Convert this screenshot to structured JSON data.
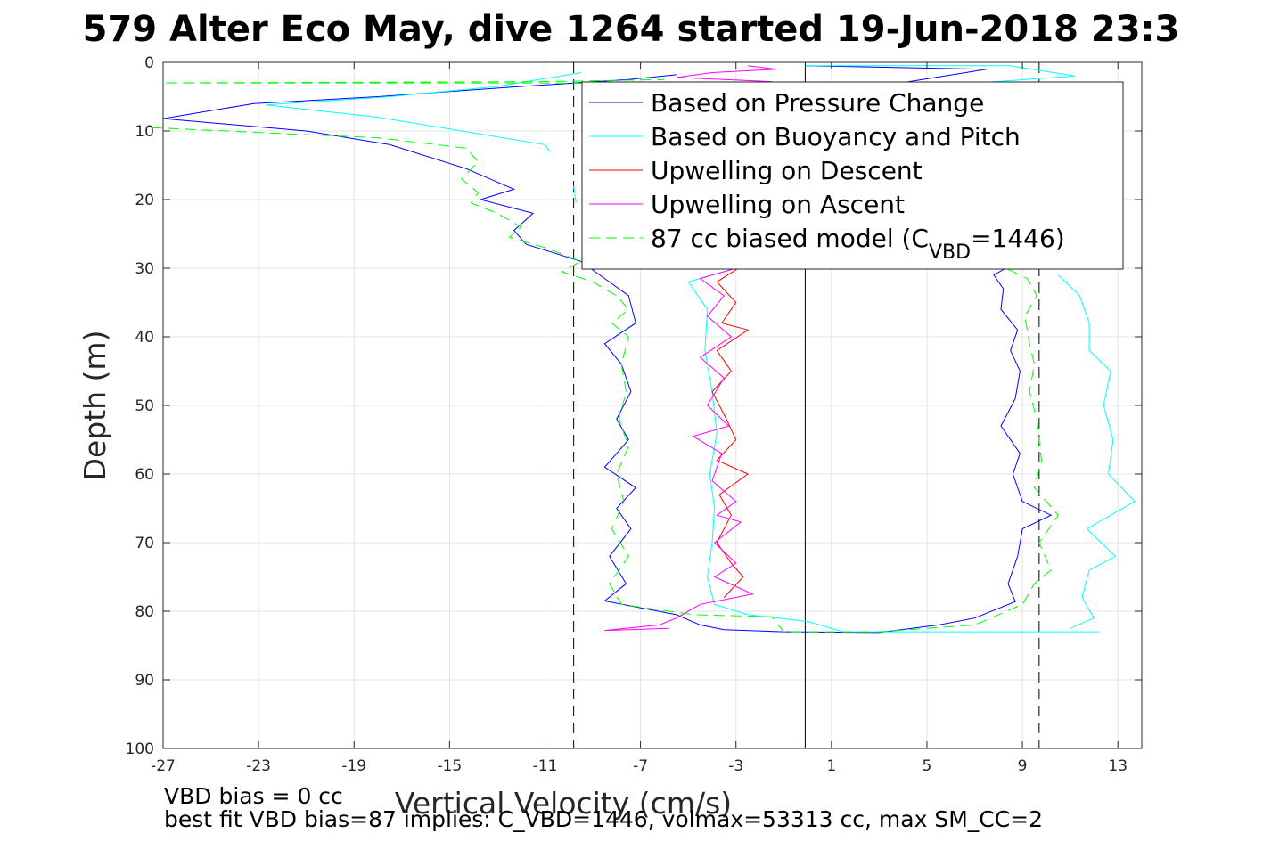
{
  "chart_data": {
    "type": "line",
    "title": "579 Alter Eco May, dive 1264 started 19-Jun-2018 23:3",
    "xlabel": "Vertical Velocity (cm/s)",
    "ylabel": "Depth (m)",
    "xlim": [
      -27,
      14
    ],
    "ylim": [
      0,
      100
    ],
    "y_reversed": true,
    "grid": true,
    "x_ticks": [
      -27,
      -23,
      -19,
      -15,
      -11,
      -7,
      -3,
      1,
      5,
      9,
      13
    ],
    "y_ticks": [
      0,
      10,
      20,
      30,
      40,
      50,
      60,
      70,
      80,
      90,
      100
    ],
    "legend_position": "top-right",
    "reference_lines": [
      {
        "x": -9.8,
        "style": "dashed",
        "color": "#000000"
      },
      {
        "x": -0.1,
        "style": "solid",
        "color": "#000000"
      },
      {
        "x": 9.7,
        "style": "dashed",
        "color": "#000000"
      }
    ],
    "series": [
      {
        "name": "Based on Pressure Change",
        "color": "#0000ff",
        "style": "solid",
        "segments": [
          [
            [
              -5.5,
              1.8
            ],
            [
              -7.5,
              2.5
            ],
            [
              -12,
              3.5
            ],
            [
              -18,
              5
            ],
            [
              -23.2,
              6
            ],
            [
              -27,
              8.2
            ],
            [
              -21,
              10
            ],
            [
              -17.5,
              12
            ],
            [
              -14.3,
              15.5
            ],
            [
              -12.3,
              18.5
            ],
            [
              -13.7,
              20
            ],
            [
              -11.5,
              22
            ],
            [
              -12.3,
              24.5
            ],
            [
              -11.8,
              26.5
            ],
            [
              -9.5,
              29
            ],
            [
              -8.5,
              31.5
            ],
            [
              -7.5,
              34
            ],
            [
              -7.2,
              38
            ],
            [
              -8.5,
              41
            ],
            [
              -7.8,
              44
            ],
            [
              -7.4,
              48
            ],
            [
              -8.0,
              52
            ],
            [
              -7.5,
              55
            ],
            [
              -8.5,
              59
            ],
            [
              -7.2,
              62
            ],
            [
              -8.0,
              65
            ],
            [
              -7.4,
              68
            ],
            [
              -8.3,
              72
            ],
            [
              -7.6,
              76
            ],
            [
              -8.5,
              78.5
            ],
            [
              -5.5,
              80.5
            ],
            [
              -4.5,
              82
            ],
            [
              -3.5,
              82.7
            ],
            [
              -1,
              83
            ],
            [
              3,
              83.1
            ],
            [
              5.5,
              82
            ],
            [
              7,
              81
            ],
            [
              8.7,
              78.6
            ],
            [
              8.4,
              76
            ],
            [
              8.8,
              72
            ],
            [
              9.0,
              68
            ],
            [
              10.2,
              66
            ],
            [
              9.0,
              64
            ],
            [
              8.6,
              60
            ],
            [
              8.9,
              57
            ],
            [
              8.1,
              53
            ],
            [
              8.7,
              49
            ],
            [
              8.9,
              45
            ],
            [
              8.5,
              42
            ],
            [
              8.8,
              39
            ],
            [
              8.1,
              36
            ],
            [
              8.2,
              33
            ],
            [
              7.8,
              31
            ],
            [
              8.3,
              30
            ]
          ],
          [
            [
              -0.1,
              0.5
            ],
            [
              7.5,
              1
            ],
            [
              3,
              3.5
            ],
            [
              1,
              4.5
            ],
            [
              -8.5,
              4.8
            ]
          ]
        ]
      },
      {
        "name": "Based on Buoyancy and Pitch",
        "color": "#00ffff",
        "style": "solid",
        "segments": [
          [
            [
              -9.5,
              1.5
            ],
            [
              -13,
              3.5
            ],
            [
              -17.5,
              5
            ],
            [
              -22.7,
              6.2
            ],
            [
              -18,
              8
            ],
            [
              -14.5,
              10
            ],
            [
              -11,
              12
            ],
            [
              -10.8,
              13
            ]
          ],
          [
            [
              -9.8,
              18
            ],
            [
              -9.7,
              20.5
            ]
          ],
          [
            [
              -3,
              30
            ],
            [
              -5,
              32
            ],
            [
              -4.2,
              36
            ],
            [
              -4.3,
              42
            ],
            [
              -4.0,
              48
            ],
            [
              -3.8,
              54
            ],
            [
              -4.1,
              60
            ],
            [
              -3.9,
              65
            ],
            [
              -4.0,
              70
            ],
            [
              -4.2,
              75
            ],
            [
              -3.9,
              79
            ],
            [
              -2.5,
              80.5
            ],
            [
              0,
              81.5
            ],
            [
              1.5,
              83
            ],
            [
              6,
              83
            ],
            [
              12.2,
              83
            ]
          ],
          [
            [
              11,
              82.5
            ],
            [
              12,
              81
            ],
            [
              11.5,
              78
            ],
            [
              11.8,
              74
            ],
            [
              12.9,
              72
            ],
            [
              11.7,
              68
            ],
            [
              13.7,
              64
            ],
            [
              12.6,
              60
            ],
            [
              12.8,
              55
            ],
            [
              12.4,
              50
            ],
            [
              12.7,
              45
            ],
            [
              11.8,
              42
            ],
            [
              11.8,
              38
            ],
            [
              11.4,
              34
            ],
            [
              10.5,
              31
            ]
          ],
          [
            [
              -0.1,
              0.5
            ],
            [
              8.5,
              0.5
            ],
            [
              11.2,
              2
            ],
            [
              5,
              3.5
            ],
            [
              -9,
              4.5
            ]
          ]
        ]
      },
      {
        "name": "Upwelling on Descent",
        "color": "#ff0000",
        "style": "solid",
        "segments": [
          [
            [
              -2.9,
              30
            ],
            [
              -3.8,
              32
            ],
            [
              -3.0,
              35
            ],
            [
              -3.6,
              38
            ],
            [
              -2.5,
              39
            ],
            [
              -3.8,
              42
            ],
            [
              -3.2,
              45
            ],
            [
              -4.0,
              48
            ],
            [
              -3.4,
              52
            ],
            [
              -3.0,
              55
            ],
            [
              -3.8,
              58
            ],
            [
              -2.5,
              60
            ],
            [
              -3.7,
              63
            ],
            [
              -3.2,
              66
            ],
            [
              -3.8,
              70
            ],
            [
              -3.2,
              73
            ],
            [
              -2.7,
              75
            ],
            [
              -3.5,
              78
            ]
          ]
        ]
      },
      {
        "name": "Upwelling on Ascent",
        "color": "#ff00ff",
        "style": "solid",
        "segments": [
          [
            [
              -3,
              30
            ],
            [
              -4.5,
              31.5
            ],
            [
              -3.5,
              34
            ],
            [
              -4.2,
              37
            ],
            [
              -3.2,
              40
            ],
            [
              -4.5,
              43
            ],
            [
              -3.5,
              46
            ],
            [
              -4.2,
              50
            ],
            [
              -3.3,
              53
            ],
            [
              -4.8,
              54.5
            ],
            [
              -3.6,
              57
            ],
            [
              -4.0,
              61
            ],
            [
              -3.0,
              64
            ],
            [
              -3.8,
              66
            ],
            [
              -2.8,
              67
            ],
            [
              -3.9,
              70
            ],
            [
              -3.0,
              73
            ],
            [
              -3.9,
              75
            ],
            [
              -2.3,
              77.5
            ],
            [
              -4.5,
              79
            ],
            [
              -5.5,
              81
            ],
            [
              -6.2,
              82
            ],
            [
              -8.5,
              82.8
            ],
            [
              -5.8,
              82.5
            ]
          ],
          [
            [
              -2.5,
              0.5
            ],
            [
              -1.3,
              1
            ],
            [
              -4,
              1.5
            ],
            [
              -5.5,
              2.2
            ],
            [
              -1.5,
              2.8
            ]
          ]
        ]
      },
      {
        "name": "87 cc biased model (C_VBD=1446)",
        "color": "#00ff00",
        "style": "dashed",
        "segments": [
          [
            [
              -3,
              3.2
            ],
            [
              -12,
              3
            ],
            [
              -27,
              3
            ],
            [
              -11,
              2.8
            ],
            [
              -6,
              2.5
            ]
          ],
          [
            [
              -27.5,
              9.5
            ],
            [
              -18,
              11
            ],
            [
              -14.3,
              12.5
            ],
            [
              -13.8,
              14.5
            ],
            [
              -14.5,
              17
            ],
            [
              -13.8,
              19
            ],
            [
              -14.1,
              20.5
            ],
            [
              -13,
              22
            ],
            [
              -12,
              24
            ],
            [
              -12.5,
              25.5
            ],
            [
              -11,
              27
            ],
            [
              -9.5,
              29
            ],
            [
              -10.3,
              30.5
            ],
            [
              -9.0,
              32
            ],
            [
              -8.0,
              34
            ],
            [
              -7.5,
              36
            ],
            [
              -8.2,
              38
            ],
            [
              -7.5,
              40
            ],
            [
              -7.8,
              44
            ],
            [
              -7.6,
              48
            ],
            [
              -7.9,
              52
            ],
            [
              -7.5,
              56
            ],
            [
              -8.0,
              60
            ],
            [
              -7.7,
              64
            ],
            [
              -8.2,
              68
            ],
            [
              -7.5,
              72
            ],
            [
              -8.3,
              76
            ],
            [
              -7.8,
              79
            ],
            [
              -4.8,
              80.5
            ],
            [
              -1.5,
              80.8
            ],
            [
              -1,
              83
            ],
            [
              3,
              83
            ],
            [
              7,
              82
            ],
            [
              9.0,
              79
            ],
            [
              9.5,
              76
            ],
            [
              10.2,
              74
            ],
            [
              9.7,
              70
            ],
            [
              10.5,
              66
            ],
            [
              9.5,
              62
            ],
            [
              9.8,
              58
            ],
            [
              9.6,
              52
            ],
            [
              9.3,
              48
            ],
            [
              9.5,
              44
            ],
            [
              9.3,
              41
            ],
            [
              9.1,
              37
            ],
            [
              9.6,
              34
            ],
            [
              9.2,
              31.5
            ],
            [
              8.3,
              30
            ]
          ]
        ]
      }
    ],
    "legend": [
      {
        "label": "Based on Pressure Change",
        "color": "#0000ff",
        "style": "solid"
      },
      {
        "label": "Based on Buoyancy and Pitch",
        "color": "#00ffff",
        "style": "solid"
      },
      {
        "label": "Upwelling on Descent",
        "color": "#ff0000",
        "style": "solid"
      },
      {
        "label": "Upwelling on Ascent",
        "color": "#ff00ff",
        "style": "solid"
      },
      {
        "label": "87 cc biased model (C",
        "sub": "VBD",
        "label_suffix": "=1446)",
        "color": "#00ff00",
        "style": "dashed"
      }
    ],
    "annotations": [
      "VBD bias = 0 cc",
      "best fit VBD bias=87 implies: C_VBD=1446, volmax=53313 cc, max SM_CC=2"
    ]
  }
}
